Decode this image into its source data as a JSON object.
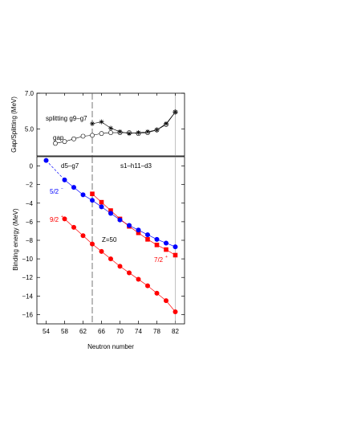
{
  "chart_data": [
    {
      "type": "line",
      "ylabel": "Gap/Splitting (MeV)",
      "ylim": [
        3.5,
        7.0
      ],
      "yticks": [
        "7.0",
        "5.0"
      ],
      "xlim": [
        52,
        84
      ],
      "series": [
        {
          "name": "splitting g9–g7",
          "marker": "star",
          "x": [
            64,
            66,
            68,
            70,
            72,
            74,
            76,
            78,
            80,
            82
          ],
          "y": [
            5.3,
            5.4,
            5.05,
            4.85,
            4.75,
            4.8,
            4.85,
            4.95,
            5.3,
            5.95
          ]
        },
        {
          "name": "gap",
          "marker": "open-circle",
          "x": [
            56,
            58,
            60,
            62,
            64,
            66,
            68,
            70,
            72,
            74,
            76,
            78,
            80,
            82
          ],
          "y": [
            4.2,
            4.3,
            4.45,
            4.6,
            4.65,
            4.75,
            4.8,
            4.8,
            4.8,
            4.75,
            4.8,
            4.95,
            5.25,
            5.95
          ]
        }
      ]
    },
    {
      "type": "line",
      "xlabel": "Neutron number",
      "ylabel": "Binding energy (MeV)",
      "xlim": [
        52,
        84
      ],
      "ylim": [
        -17,
        1
      ],
      "xticks": [
        "54",
        "58",
        "62",
        "66",
        "70",
        "74",
        "78",
        "82"
      ],
      "yticks": [
        "0",
        "−2",
        "−4",
        "−6",
        "−8",
        "−10",
        "−12",
        "−14",
        "−16"
      ],
      "annotations": [
        "d5–g7",
        "s1–h11–d3",
        "Z=50",
        "5/2",
        "9/2",
        "7/2"
      ],
      "series": [
        {
          "name": "5/2",
          "color": "#0000ff",
          "marker": "filled-circle",
          "x": [
            54,
            58,
            60,
            62,
            64,
            66,
            68,
            70,
            72,
            74,
            76,
            78,
            80,
            82
          ],
          "y": [
            0.6,
            -1.5,
            -2.3,
            -3.1,
            -3.7,
            -4.4,
            -5.1,
            -5.8,
            -6.4,
            -6.9,
            -7.4,
            -7.9,
            -8.3,
            -8.7
          ]
        },
        {
          "name": "9/2",
          "color": "#ff0000",
          "marker": "filled-circle",
          "x": [
            58,
            60,
            62,
            64,
            66,
            68,
            70,
            72,
            74,
            76,
            78,
            80,
            82
          ],
          "y": [
            -5.7,
            -6.6,
            -7.5,
            -8.4,
            -9.2,
            -10.0,
            -10.8,
            -11.5,
            -12.2,
            -12.9,
            -13.7,
            -14.5,
            -15.7
          ]
        },
        {
          "name": "7/2",
          "color": "#ff0000",
          "marker": "filled-square",
          "x": [
            64,
            66,
            68,
            70,
            72,
            74,
            76,
            78,
            80,
            82
          ],
          "y": [
            -3.0,
            -3.9,
            -4.8,
            -5.7,
            -6.5,
            -7.2,
            -7.9,
            -8.5,
            -9.0,
            -9.6
          ]
        }
      ]
    }
  ],
  "colors": {
    "blue": "#0000ff",
    "red": "#ff0000",
    "axis": "#000000"
  }
}
